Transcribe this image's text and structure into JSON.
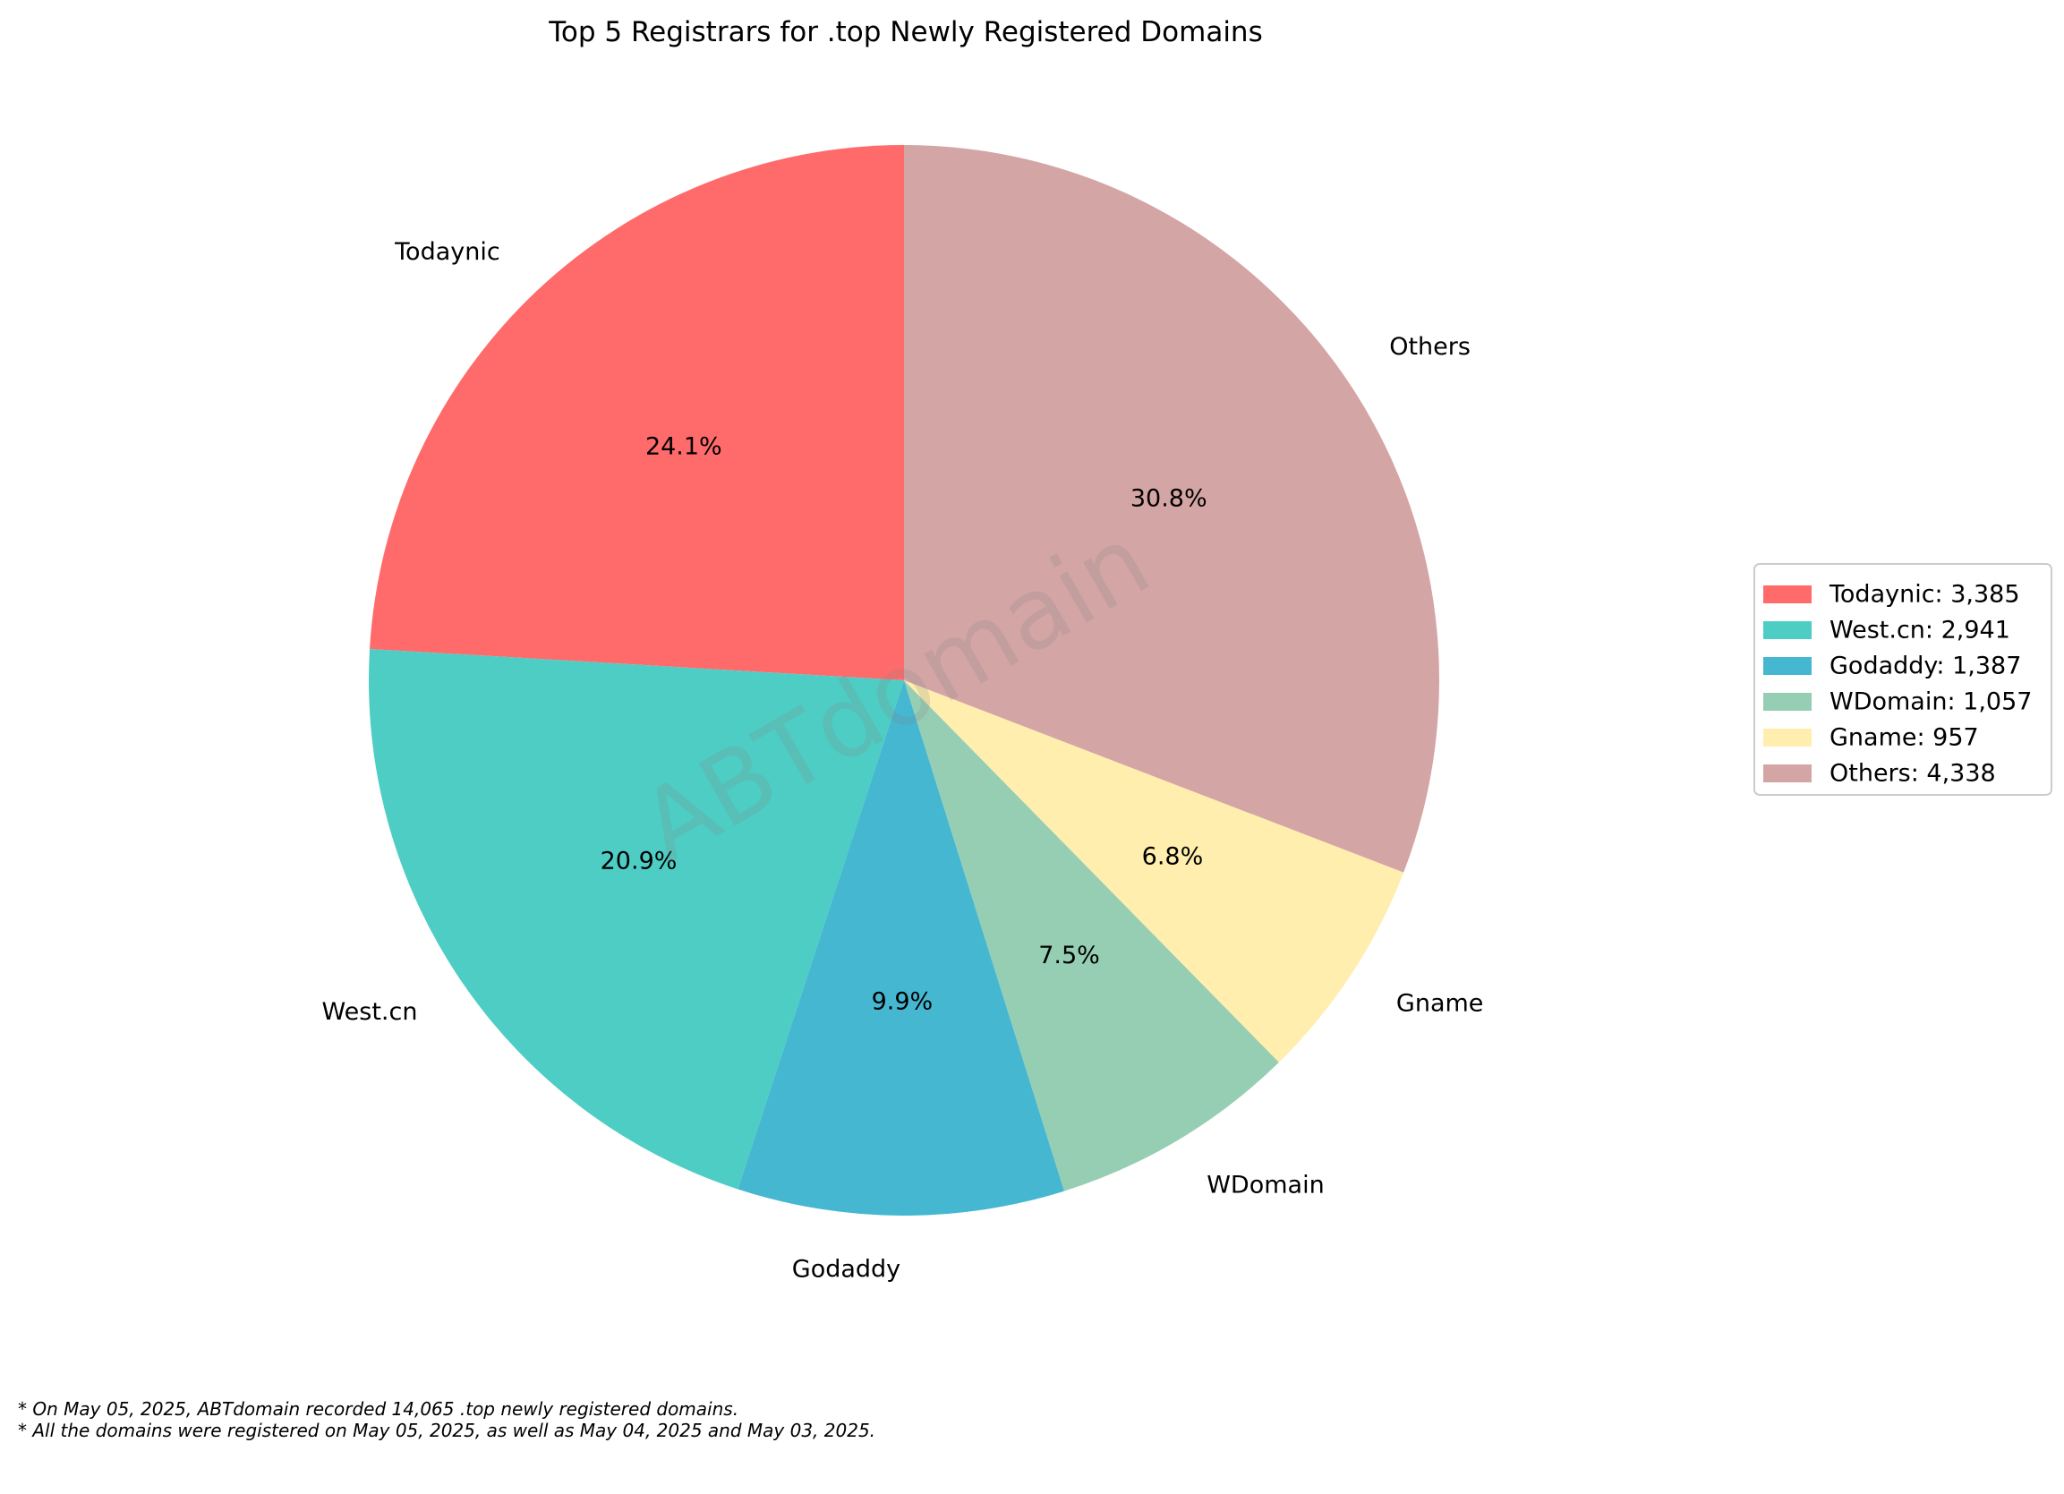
{
  "chart_data": {
    "type": "pie",
    "title": "Top 5 Registrars for .top Newly Registered Domains",
    "start_angle_deg": 90,
    "direction": "counterclockwise",
    "slices": [
      {
        "name": "Todaynic",
        "value": 3385,
        "percent_label": "24.1%",
        "legend_label": "Todaynic: 3,385",
        "color": "#FF6B6B"
      },
      {
        "name": "West.cn",
        "value": 2941,
        "percent_label": "20.9%",
        "legend_label": "West.cn: 2,941",
        "color": "#4ECDC4"
      },
      {
        "name": "Godaddy",
        "value": 1387,
        "percent_label": "9.9%",
        "legend_label": "Godaddy: 1,387",
        "color": "#45B7D1"
      },
      {
        "name": "WDomain",
        "value": 1057,
        "percent_label": "7.5%",
        "legend_label": "WDomain: 1,057",
        "color": "#96CEB4"
      },
      {
        "name": "Gname",
        "value": 957,
        "percent_label": "6.8%",
        "legend_label": "Gname: 957",
        "color": "#FFEEAD"
      },
      {
        "name": "Others",
        "value": 4338,
        "percent_label": "30.8%",
        "legend_label": "Others: 4,338",
        "color": "#D4A5A5"
      }
    ],
    "legend_position": "right",
    "watermark": "ABTdomain"
  },
  "footnotes": [
    "* On May 05, 2025, ABTdomain recorded 14,065 .top newly registered domains.",
    "* All the domains were registered on May 05, 2025, as well as May 04, 2025 and May 03, 2025."
  ]
}
